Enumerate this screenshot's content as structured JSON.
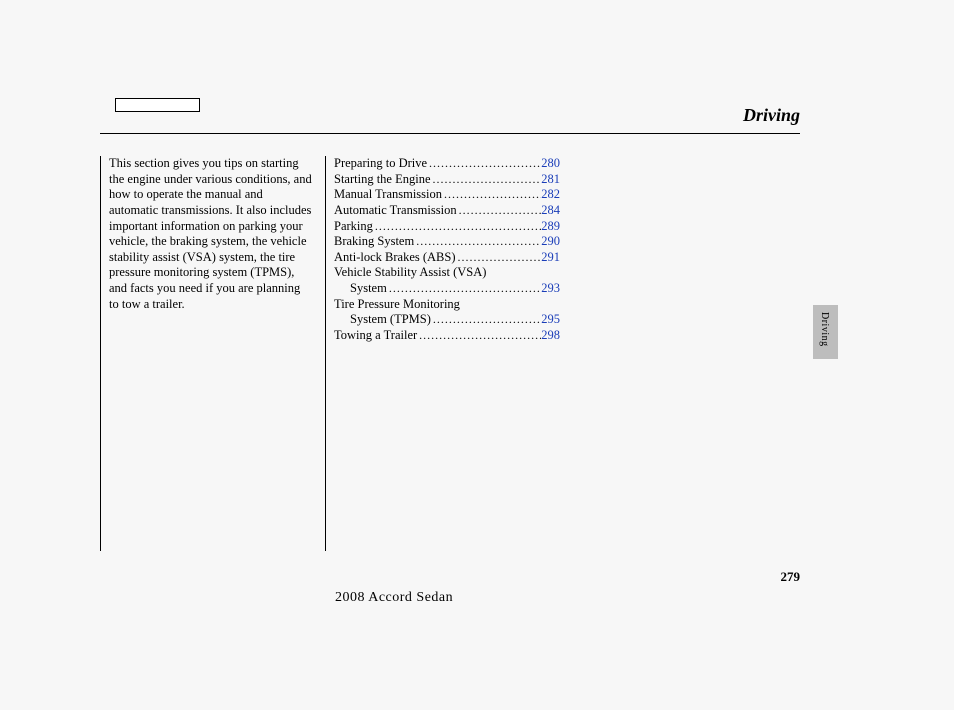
{
  "header": {
    "title": "Driving"
  },
  "intro": {
    "paragraph": "This section gives you tips on starting the engine under various conditions, and how to operate the manual and automatic transmissions. It also includes important information on parking your vehicle, the braking system, the vehicle stability assist (VSA) system, the tire pressure monitoring system (TPMS), and facts you need if you are planning to tow a trailer."
  },
  "toc": [
    {
      "label": "Preparing to Drive",
      "page": "280",
      "indent": false,
      "dots": true
    },
    {
      "label": "Starting the Engine",
      "page": "281",
      "indent": false,
      "dots": true
    },
    {
      "label": "Manual Transmission",
      "page": "282",
      "indent": false,
      "dots": true
    },
    {
      "label": "Automatic Transmission",
      "page": "284",
      "indent": false,
      "dots": true
    },
    {
      "label": "Parking",
      "page": "289",
      "indent": false,
      "dots": true
    },
    {
      "label": "Braking System",
      "page": "290",
      "indent": false,
      "dots": true
    },
    {
      "label": "Anti-lock Brakes (ABS)",
      "page": "291",
      "indent": false,
      "dots": true
    },
    {
      "label": "Vehicle Stability Assist (VSA)",
      "page": "",
      "indent": false,
      "dots": false
    },
    {
      "label": "System",
      "page": "293",
      "indent": true,
      "dots": true
    },
    {
      "label": "Tire Pressure Monitoring",
      "page": "",
      "indent": false,
      "dots": false
    },
    {
      "label": "System (TPMS)",
      "page": "295",
      "indent": true,
      "dots": true
    },
    {
      "label": "Towing a Trailer",
      "page": "298",
      "indent": false,
      "dots": true
    }
  ],
  "pageNumber": "279",
  "footer": "2008  Accord  Sedan",
  "sideTab": "Driving",
  "colors": {
    "link": "#1a3db8",
    "tab": "#bdbdbd",
    "bg": "#f7f7f7"
  }
}
